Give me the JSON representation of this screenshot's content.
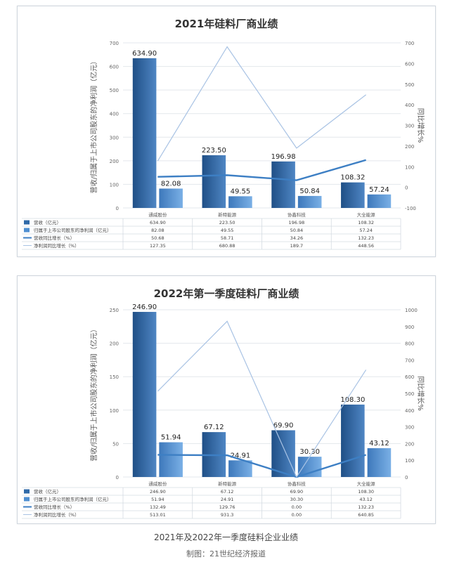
{
  "colors": {
    "revenue": "#2f6aa8",
    "profit": "#4e8fd1",
    "revenue_growth": "#3d7fc4",
    "profit_growth": "#a9c3e4",
    "grid": "#e3e7ec",
    "text": "#444444"
  },
  "chart_data": [
    {
      "type": "bar",
      "title": "2021年硅料厂商业绩",
      "ylabel": "营收/归属于上市公司股东的净利润（亿元）",
      "y2label": "同比增长%",
      "ylim": [
        0,
        700
      ],
      "yticks": [
        0,
        100,
        200,
        300,
        400,
        500,
        600,
        700
      ],
      "y2lim": [
        -100,
        700
      ],
      "y2ticks": [
        -100,
        0,
        100,
        200,
        300,
        400,
        500,
        600,
        700
      ],
      "categories": [
        "通威股份",
        "新特能源",
        "协鑫科技",
        "大全能源"
      ],
      "series": [
        {
          "name": "营收（亿元）",
          "kind": "bar",
          "values": [
            634.9,
            223.5,
            196.98,
            108.32
          ],
          "labels": [
            "634.90",
            "223.50",
            "196.98",
            "108.32"
          ]
        },
        {
          "name": "归属于上市公司股东的净利润（亿元）",
          "kind": "bar",
          "values": [
            82.08,
            49.55,
            50.84,
            57.24
          ],
          "labels": [
            "82.08",
            "49.55",
            "50.84",
            "57.24"
          ]
        },
        {
          "name": "营收同比增长（%）",
          "kind": "line",
          "values": [
            50.68,
            58.71,
            34.26,
            132.23
          ],
          "labels": [
            "50.68",
            "58.71",
            "34.26",
            "132.23"
          ]
        },
        {
          "name": "净利润同比增长（%）",
          "kind": "line",
          "values": [
            127.35,
            680.88,
            189.7,
            448.56
          ],
          "labels": [
            "127.35",
            "680.88",
            "189.7",
            "448.56"
          ]
        }
      ]
    },
    {
      "type": "bar",
      "title": "2022年第一季度硅料厂商业绩",
      "ylabel": "营收/归属于上市公司股东的净利润（亿元）",
      "y2label": "同比增长%",
      "ylim": [
        0,
        250
      ],
      "yticks": [
        0,
        50,
        100,
        150,
        200,
        250
      ],
      "y2lim": [
        0,
        1000
      ],
      "y2ticks": [
        0,
        100,
        200,
        300,
        400,
        500,
        600,
        700,
        800,
        900,
        1000
      ],
      "categories": [
        "通威股份",
        "新特能源",
        "协鑫科技",
        "大全能源"
      ],
      "series": [
        {
          "name": "营收（亿元）",
          "kind": "bar",
          "values": [
            246.9,
            67.12,
            69.9,
            108.3
          ],
          "labels": [
            "246.90",
            "67.12",
            "69.90",
            "108.30"
          ]
        },
        {
          "name": "归属于上市公司股东的净利润（亿元）",
          "kind": "bar",
          "values": [
            51.94,
            24.91,
            30.3,
            43.12
          ],
          "labels": [
            "51.94",
            "24.91",
            "30.30",
            "43.12"
          ]
        },
        {
          "name": "营收同比增长（%）",
          "kind": "line",
          "values": [
            132.49,
            129.76,
            0.0,
            132.23
          ],
          "labels": [
            "132.49",
            "129.76",
            "0.00",
            "132.23"
          ]
        },
        {
          "name": "净利润同比增长（%）",
          "kind": "line",
          "values": [
            513.01,
            931.3,
            0.0,
            640.85
          ],
          "labels": [
            "513.01",
            "931.3",
            "0.00",
            "640.85"
          ]
        }
      ]
    }
  ],
  "captions": {
    "main": "2021年及2022年一季度硅料企业业绩",
    "credit": "制图：21世纪经济报道"
  }
}
